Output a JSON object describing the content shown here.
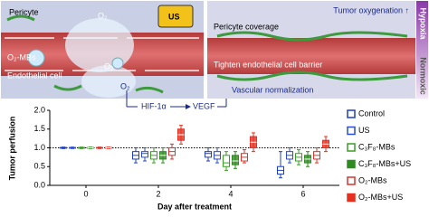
{
  "diagram": {
    "texts": {
      "pericyte": "Pericyte",
      "o2_top": "O₂",
      "us": "US",
      "o2_mbs": "O₂-MBs",
      "endothelial": "Endothelial cell",
      "o2_mid": "O₂",
      "o2_low": "O₂",
      "hif": "HIF-1α",
      "vegf": "VEGF",
      "oxygenation": "Tumor oxygenation ↑",
      "coverage": "Pericyte coverage",
      "barrier": "Tighten endothelial cell barrier",
      "normalization": "Vascular normalization",
      "hypoxia": "Hypoxia",
      "normoxic": "Normoxic"
    }
  },
  "chart_data": {
    "type": "box",
    "y_label": "Tumor perfusion",
    "x_label": "Day after treatment",
    "categories": [
      "0",
      "2",
      "4",
      "6"
    ],
    "ylim": [
      0,
      2.0
    ],
    "yticks": [
      {
        "value": 0,
        "label": "0.0"
      },
      {
        "value": 0.5,
        "label": "0.5"
      },
      {
        "value": 1.0,
        "label": "1.0"
      },
      {
        "value": 1.5,
        "label": "1.5"
      },
      {
        "value": 2.0,
        "label": "2.0"
      }
    ],
    "refline": 1.0,
    "series": [
      {
        "name": "Control",
        "color": "#1f3fbf",
        "filled": false,
        "values": [
          {
            "min": 0.98,
            "q1": 0.99,
            "median": 1.0,
            "q3": 1.01,
            "max": 1.02
          },
          {
            "min": 0.6,
            "q1": 0.7,
            "median": 0.8,
            "q3": 0.9,
            "max": 1.0
          },
          {
            "min": 0.65,
            "q1": 0.75,
            "median": 0.85,
            "q3": 0.9,
            "max": 1.0
          },
          {
            "min": 0.2,
            "q1": 0.3,
            "median": 0.4,
            "q3": 0.5,
            "max": 0.9
          }
        ]
      },
      {
        "name": "US",
        "color": "#2a4bd7",
        "filled": false,
        "values": [
          {
            "min": 0.98,
            "q1": 0.99,
            "median": 1.0,
            "q3": 1.01,
            "max": 1.02
          },
          {
            "min": 0.65,
            "q1": 0.75,
            "median": 0.85,
            "q3": 0.9,
            "max": 1.0
          },
          {
            "min": 0.6,
            "q1": 0.7,
            "median": 0.8,
            "q3": 0.9,
            "max": 1.0
          },
          {
            "min": 0.6,
            "q1": 0.7,
            "median": 0.8,
            "q3": 0.9,
            "max": 1.0
          }
        ]
      },
      {
        "name": "C₃F₈-MBs",
        "color": "#3a9d23",
        "filled": false,
        "values": [
          {
            "min": 0.98,
            "q1": 0.99,
            "median": 1.0,
            "q3": 1.01,
            "max": 1.02
          },
          {
            "min": 0.6,
            "q1": 0.7,
            "median": 0.8,
            "q3": 0.9,
            "max": 1.0
          },
          {
            "min": 0.4,
            "q1": 0.5,
            "median": 0.6,
            "q3": 0.8,
            "max": 0.9
          },
          {
            "min": 0.55,
            "q1": 0.65,
            "median": 0.75,
            "q3": 0.85,
            "max": 0.95
          }
        ]
      },
      {
        "name": "C₃F₈-MBs+US",
        "color": "#2e8b1f",
        "filled": true,
        "values": [
          {
            "min": 0.98,
            "q1": 0.99,
            "median": 1.0,
            "q3": 1.01,
            "max": 1.02
          },
          {
            "min": 0.6,
            "q1": 0.7,
            "median": 0.8,
            "q3": 0.9,
            "max": 1.0
          },
          {
            "min": 0.45,
            "q1": 0.55,
            "median": 0.65,
            "q3": 0.8,
            "max": 0.9
          },
          {
            "min": 0.5,
            "q1": 0.6,
            "median": 0.7,
            "q3": 0.8,
            "max": 0.9
          }
        ]
      },
      {
        "name": "O₂-MBs",
        "color": "#d9342b",
        "filled": false,
        "values": [
          {
            "min": 0.98,
            "q1": 0.99,
            "median": 1.0,
            "q3": 1.01,
            "max": 1.02
          },
          {
            "min": 0.7,
            "q1": 0.8,
            "median": 0.9,
            "q3": 1.0,
            "max": 1.1
          },
          {
            "min": 0.6,
            "q1": 0.65,
            "median": 0.75,
            "q3": 0.85,
            "max": 0.95
          },
          {
            "min": 0.6,
            "q1": 0.7,
            "median": 0.8,
            "q3": 0.9,
            "max": 1.0
          }
        ]
      },
      {
        "name": "O₂-MBs+US",
        "color": "#e53020",
        "filled": true,
        "values": [
          {
            "min": 0.98,
            "q1": 0.99,
            "median": 1.0,
            "q3": 1.01,
            "max": 1.02
          },
          {
            "min": 1.1,
            "q1": 1.2,
            "median": 1.35,
            "q3": 1.5,
            "max": 1.6
          },
          {
            "min": 0.9,
            "q1": 1.0,
            "median": 1.15,
            "q3": 1.3,
            "max": 1.4
          },
          {
            "min": 0.9,
            "q1": 1.0,
            "median": 1.1,
            "q3": 1.2,
            "max": 1.3
          }
        ]
      }
    ]
  }
}
